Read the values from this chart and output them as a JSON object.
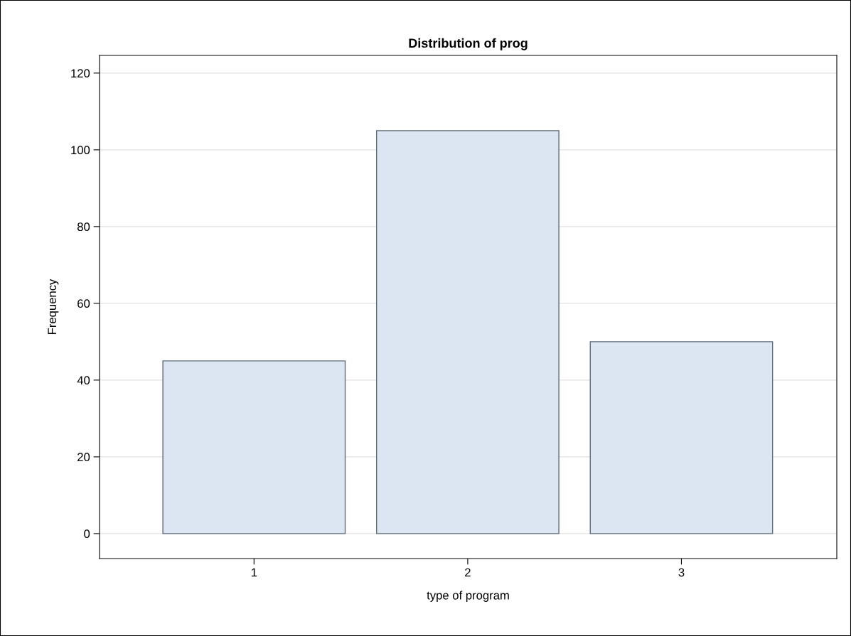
{
  "chart_data": {
    "type": "bar",
    "title": "Distribution of prog",
    "xlabel": "type of program",
    "ylabel": "Frequency",
    "categories": [
      "1",
      "2",
      "3"
    ],
    "values": [
      45,
      105,
      50
    ],
    "color": "#dce6f2",
    "ylim": [
      -6.5,
      124.6
    ],
    "yticks": [
      0,
      20,
      40,
      60,
      80,
      100,
      120
    ],
    "grid": "y"
  }
}
